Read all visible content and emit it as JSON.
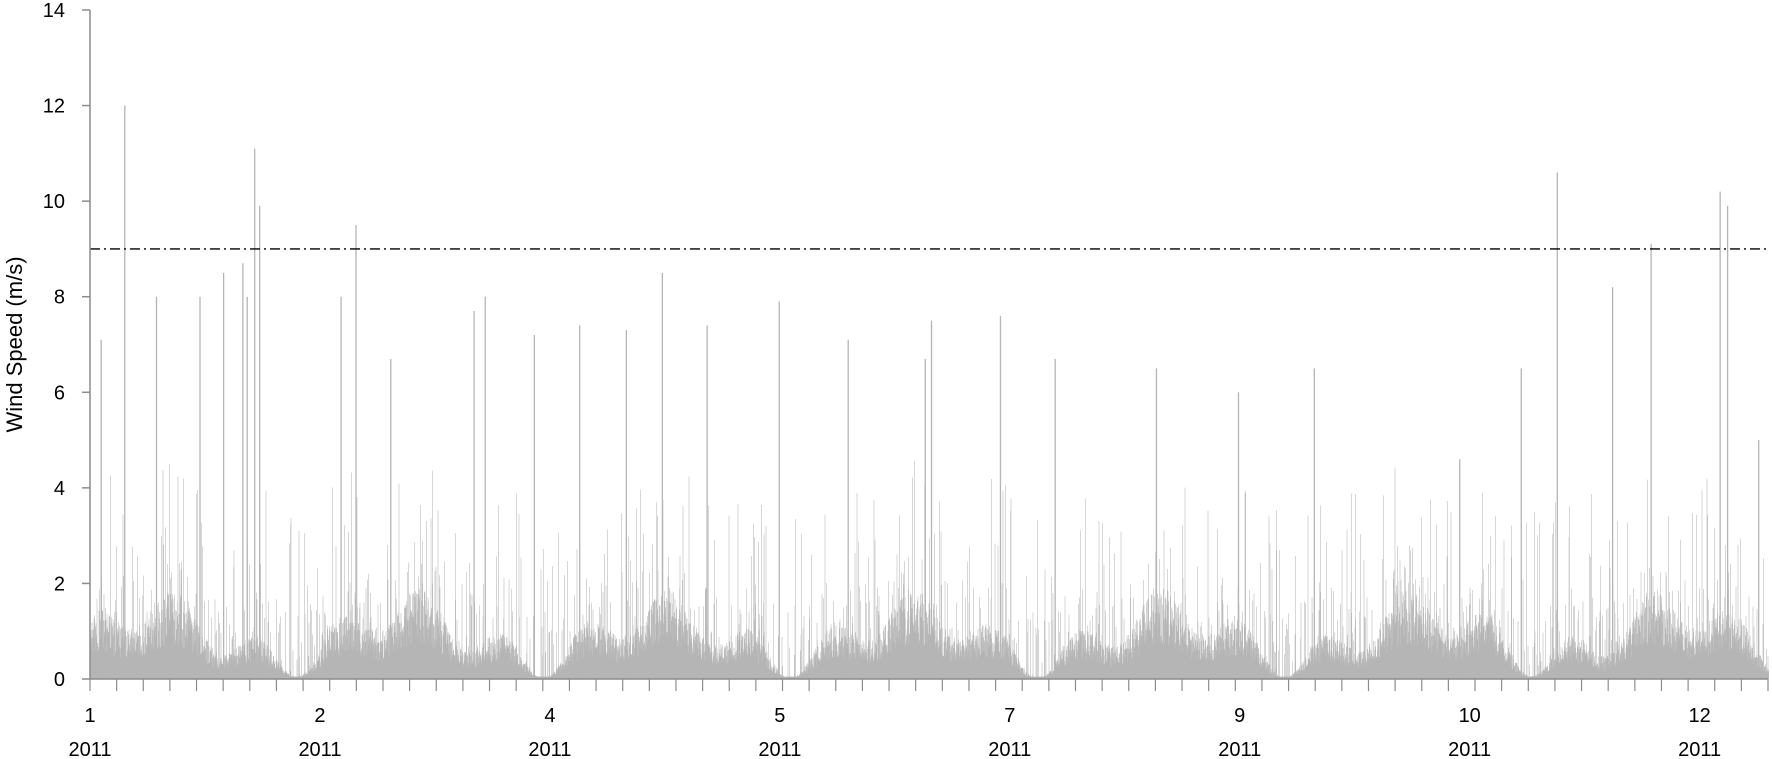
{
  "chart_data": {
    "type": "area",
    "title": "",
    "ylabel": "Wind Speed (m/s)",
    "xlabel": "",
    "ylim": [
      0,
      14
    ],
    "y_ticks": [
      0,
      2,
      4,
      6,
      8,
      10,
      12,
      14
    ],
    "x_tick_labels": [
      {
        "month": "1",
        "year": "2011"
      },
      {
        "month": "2",
        "year": "2011"
      },
      {
        "month": "4",
        "year": "2011"
      },
      {
        "month": "5",
        "year": "2011"
      },
      {
        "month": "7",
        "year": "2011"
      },
      {
        "month": "9",
        "year": "2011"
      },
      {
        "month": "10",
        "year": "2011"
      },
      {
        "month": "12",
        "year": "2011"
      }
    ],
    "x_tick_days": [
      0,
      37,
      74,
      111,
      148,
      185,
      222,
      259
    ],
    "x_range_days": [
      0,
      270
    ],
    "threshold": {
      "value": 9,
      "style": "dash-dot"
    },
    "series": [
      {
        "color": "#b5b5b5",
        "peaks": [
          {
            "day": 1.8,
            "value": 7.1
          },
          {
            "day": 5.6,
            "value": 12.0
          },
          {
            "day": 10.7,
            "value": 8.0
          },
          {
            "day": 17.7,
            "value": 8.0
          },
          {
            "day": 21.5,
            "value": 8.5
          },
          {
            "day": 25.3,
            "value": 8.0
          },
          {
            "day": 24.6,
            "value": 8.7
          },
          {
            "day": 26.5,
            "value": 11.1
          },
          {
            "day": 27.3,
            "value": 9.9
          },
          {
            "day": 40.4,
            "value": 8.0
          },
          {
            "day": 42.8,
            "value": 9.5
          },
          {
            "day": 48.4,
            "value": 6.7
          },
          {
            "day": 61.8,
            "value": 7.7
          },
          {
            "day": 63.6,
            "value": 8.0
          },
          {
            "day": 71.5,
            "value": 7.2
          },
          {
            "day": 78.8,
            "value": 7.4
          },
          {
            "day": 86.3,
            "value": 7.3
          },
          {
            "day": 92.1,
            "value": 8.5
          },
          {
            "day": 99.3,
            "value": 7.4
          },
          {
            "day": 110.9,
            "value": 7.9
          },
          {
            "day": 122.0,
            "value": 7.1
          },
          {
            "day": 135.4,
            "value": 7.5
          },
          {
            "day": 134.4,
            "value": 6.7
          },
          {
            "day": 146.5,
            "value": 7.6
          },
          {
            "day": 155.3,
            "value": 6.7
          },
          {
            "day": 171.6,
            "value": 6.5
          },
          {
            "day": 184.8,
            "value": 6.0
          },
          {
            "day": 197.0,
            "value": 6.5
          },
          {
            "day": 220.4,
            "value": 4.6
          },
          {
            "day": 230.3,
            "value": 6.5
          },
          {
            "day": 236.1,
            "value": 10.6
          },
          {
            "day": 245.0,
            "value": 8.2
          },
          {
            "day": 251.2,
            "value": 9.1
          },
          {
            "day": 262.3,
            "value": 10.2
          },
          {
            "day": 263.5,
            "value": 9.9
          },
          {
            "day": 268.5,
            "value": 5.0
          }
        ]
      }
    ],
    "grid": false,
    "legend": "none"
  }
}
